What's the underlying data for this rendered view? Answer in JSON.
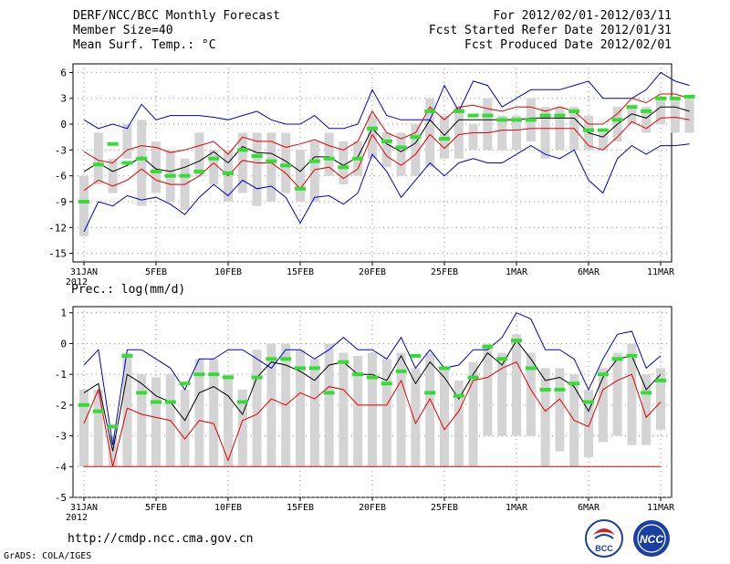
{
  "header": {
    "title": "DERF/NCC/BCC Monthly Forecast",
    "member_size": "Member Size=40",
    "variable": "Mean Surf. Temp.: °C",
    "period": "For 2012/02/01-2012/03/11",
    "refer_date": "Fcst Started Refer Date 2012/01/31",
    "produced_date": "Fcst Produced Date 2012/02/01"
  },
  "footer": {
    "url": "http://cmdp.ncc.cma.gov.cn",
    "grads": "GrADS: COLA/IGES",
    "logo_bcc": "BCC",
    "logo_ncc": "NCC"
  },
  "colors": {
    "box": "#d4d4d4",
    "mean": "#000000",
    "inner": "#e00000",
    "outer": "#0000cc",
    "obs": "#33dd33"
  },
  "chart_data": [
    {
      "type": "line",
      "title": "Mean Surf. Temp.: °C",
      "x_tick_labels": [
        "31JAN\n2012",
        "5FEB",
        "10FEB",
        "15FEB",
        "20FEB",
        "25FEB",
        "1MAR",
        "6MAR",
        "11MAR"
      ],
      "x_tick_index": [
        0,
        5,
        10,
        15,
        20,
        25,
        30,
        35,
        40
      ],
      "ylim": [
        -16,
        7
      ],
      "yticks": [
        6,
        3,
        0,
        -3,
        -6,
        -9,
        -12,
        -15
      ],
      "series": [
        {
          "name": "max",
          "values": [
            0.5,
            -0.5,
            0,
            -0.5,
            2.3,
            0.5,
            1,
            1,
            1,
            0.8,
            0.5,
            1,
            1.5,
            0.5,
            0,
            0,
            1,
            -0.5,
            -0.5,
            0,
            4,
            1,
            0.5,
            0.5,
            0.5,
            4.5,
            1.5,
            5,
            4.5,
            2,
            3,
            4,
            4,
            4,
            4.5,
            5,
            3,
            3,
            3,
            4,
            6,
            5,
            4.5
          ]
        },
        {
          "name": "upper",
          "values": [
            -3.2,
            -4.2,
            -4.5,
            -3,
            -2.5,
            -2.7,
            -3.3,
            -3,
            -2.5,
            -2,
            -3.5,
            -1.5,
            -2,
            -2,
            -2.7,
            -2.3,
            -1.8,
            -2.5,
            -3,
            -2,
            1.5,
            -1,
            -1.7,
            -1,
            2,
            0.5,
            2,
            2.2,
            1.8,
            1.5,
            2,
            2,
            1.5,
            2,
            1.5,
            0,
            0,
            1.2,
            3,
            2.5,
            3.5,
            3.5,
            3
          ]
        },
        {
          "name": "mean",
          "values": [
            -5.5,
            -4.5,
            -5.5,
            -4.8,
            -3.8,
            -5.2,
            -5.5,
            -5,
            -4.3,
            -3.2,
            -4.5,
            -2.6,
            -3.3,
            -3.4,
            -4.3,
            -5.5,
            -3.8,
            -3.8,
            -4.8,
            -3.8,
            -0.5,
            -2.3,
            -3.2,
            -2.2,
            0.5,
            -1.3,
            0.5,
            0.5,
            0.5,
            0.5,
            0.5,
            0.7,
            0.7,
            0.7,
            0.7,
            -1,
            -1.5,
            0,
            1.2,
            0.7,
            2,
            2,
            1.5
          ]
        },
        {
          "name": "lower",
          "values": [
            -7.7,
            -6.5,
            -7.2,
            -6.5,
            -5.2,
            -6.5,
            -7,
            -7,
            -6,
            -4.5,
            -6,
            -4.2,
            -4.5,
            -4.5,
            -5.7,
            -7.5,
            -5.3,
            -5,
            -6.3,
            -5.2,
            -1.2,
            -3.7,
            -4.8,
            -3.5,
            -1.2,
            -2.8,
            -1.2,
            -1,
            -1,
            -0.7,
            -0.7,
            -0.5,
            -0.5,
            -0.5,
            -0.5,
            -2.5,
            -3,
            -1.5,
            0.3,
            -0.5,
            0.7,
            0.8,
            0.5
          ]
        },
        {
          "name": "min",
          "values": [
            -12.5,
            -9,
            -9.5,
            -8.3,
            -8.8,
            -8.5,
            -9.3,
            -10.5,
            -8.5,
            -7,
            -8.3,
            -6.5,
            -7.5,
            -7.2,
            -8.5,
            -11.5,
            -8.5,
            -8.3,
            -9.3,
            -8,
            -3.5,
            -5.5,
            -8.5,
            -6.5,
            -4.5,
            -6,
            -4.5,
            -4,
            -4.5,
            -4.5,
            -3.5,
            -2.5,
            -3.5,
            -4,
            -3,
            -6.5,
            -8,
            -4,
            -2.5,
            -3.5,
            -2.5,
            -2.5,
            -2.3
          ]
        },
        {
          "name": "box_top",
          "values": [
            -6,
            -1,
            -4,
            0,
            0.5,
            -2,
            -3,
            -4,
            -1,
            -3,
            -3,
            -1,
            -1,
            -1,
            -1,
            -3,
            -2,
            -1,
            -2,
            -2,
            1,
            -1,
            -1,
            0,
            3,
            1,
            2,
            0,
            3,
            1,
            1,
            3,
            2,
            2,
            2,
            1,
            -1,
            2,
            2,
            2,
            3,
            3,
            3
          ]
        },
        {
          "name": "box_bottom",
          "values": [
            -13,
            -7,
            -8,
            -4,
            -9.5,
            -8,
            -9,
            -10,
            -6,
            -7,
            -9,
            -8,
            -9.5,
            -9,
            -8,
            -9,
            -9,
            -6,
            -7,
            -6,
            -4,
            -5,
            -6,
            -6,
            -5,
            -4,
            -4,
            -3,
            -3,
            -3,
            -3,
            -2,
            -4,
            -3,
            -3,
            -3,
            -3,
            -2,
            0,
            -1,
            0,
            -1,
            -1
          ]
        },
        {
          "name": "observed",
          "values": [
            -9,
            -4.7,
            -2.3,
            -4.5,
            -4,
            -5.5,
            -6,
            -6,
            -5.5,
            -4,
            -5.7,
            -3,
            -3.7,
            -4.3,
            -4.8,
            -7.5,
            -4.3,
            -4,
            -5,
            -4,
            -0.5,
            -2,
            -2.7,
            -1.5,
            1.5,
            -1.7,
            1.5,
            1,
            1,
            0.5,
            0.5,
            0.5,
            1,
            1,
            1.5,
            -0.7,
            -0.7,
            0.5,
            2,
            1.5,
            3,
            3,
            3.2
          ]
        }
      ]
    },
    {
      "type": "line",
      "title": "Prec.: log(mm/d)",
      "x_tick_labels": [
        "31JAN\n2012",
        "5FEB",
        "10FEB",
        "15FEB",
        "20FEB",
        "25FEB",
        "1MAR",
        "6MAR",
        "11MAR"
      ],
      "x_tick_index": [
        0,
        5,
        10,
        15,
        20,
        25,
        30,
        35,
        40
      ],
      "ylim": [
        -5,
        1.2
      ],
      "yticks": [
        1,
        0,
        -1,
        -2,
        -3,
        -4,
        -5
      ],
      "series": [
        {
          "name": "max",
          "values": [
            -0.7,
            -0.2,
            -3.3,
            -0.2,
            -0.2,
            -0.5,
            -0.8,
            -1.5,
            -0.5,
            -0.5,
            -0.2,
            -0.2,
            -0.5,
            -0.8,
            -0.2,
            -0.2,
            -0.5,
            -0.2,
            0.2,
            -0.2,
            -0.2,
            -0.5,
            0.2,
            -0.8,
            -0.2,
            -0.8,
            -0.7,
            -0.2,
            -0.2,
            0.2,
            1,
            0.8,
            -0.2,
            -0.2,
            -0.5,
            -1.5,
            -0.5,
            0.3,
            0.4,
            -0.8,
            -0.4
          ]
        },
        {
          "name": "mean",
          "values": [
            -1.6,
            -1.3,
            -3.5,
            -1,
            -1.3,
            -1.7,
            -1.9,
            -2.5,
            -1.6,
            -1.4,
            -1.7,
            -2.3,
            -1.1,
            -0.6,
            -0.7,
            -0.9,
            -1.2,
            -0.7,
            -0.6,
            -1,
            -1,
            -1.2,
            -0.4,
            -1.3,
            -0.6,
            -1.1,
            -1.8,
            -1,
            -0.3,
            -0.7,
            0.1,
            -0.5,
            -1.2,
            -1.1,
            -1.4,
            -2.2,
            -1.1,
            -0.5,
            -0.4,
            -1.5,
            -1
          ]
        },
        {
          "name": "min",
          "values": [
            -2.6,
            -1.5,
            -4,
            -2.1,
            -2.3,
            -2.4,
            -2.5,
            -3.1,
            -2.5,
            -2.6,
            -3.8,
            -2.5,
            -2.3,
            -1.8,
            -2,
            -1.6,
            -1.8,
            -1.4,
            -1.5,
            -2,
            -2,
            -2,
            -1.2,
            -2.6,
            -1.8,
            -2.8,
            -2.2,
            -1.2,
            -1.1,
            -0.8,
            -0.6,
            -1.5,
            -2.2,
            -1.8,
            -2.5,
            -2.7,
            -1.5,
            -1.2,
            -1,
            -2.4,
            -1.9
          ]
        },
        {
          "name": "floor",
          "values": [
            -4,
            -4,
            -4,
            -4,
            -4,
            -4,
            -4,
            -4,
            -4,
            -4,
            -4,
            -4,
            -4,
            -4,
            -4,
            -4,
            -4,
            -4,
            -4,
            -4,
            -4,
            -4,
            -4,
            -4,
            -4,
            -4,
            -4,
            -4,
            -4,
            -4,
            -4,
            -4,
            -4,
            -4,
            -4,
            -4,
            -4,
            -4,
            -4,
            -4,
            -4
          ]
        },
        {
          "name": "box_top",
          "values": [
            -1.5,
            -1.5,
            -3,
            -0.3,
            -1,
            -1.1,
            -1,
            -1.5,
            -0.5,
            -0.5,
            -1,
            -1.5,
            -0.2,
            0,
            0,
            -0.2,
            -0.5,
            0,
            -0.3,
            -0.4,
            -0.3,
            -0.5,
            -0.3,
            -0.8,
            -0.3,
            -0.8,
            -1.2,
            -0.6,
            0,
            -0.3,
            0.3,
            -0.3,
            -0.8,
            -0.8,
            -1,
            -1.5,
            -0.8,
            -0.3,
            0,
            -1,
            -0.8
          ]
        },
        {
          "name": "box_bottom",
          "values": [
            -4,
            -4,
            -4,
            -4,
            -4,
            -4,
            -4,
            -4,
            -4,
            -4,
            -4,
            -4,
            -4,
            -4,
            -4,
            -4,
            -4,
            -4,
            -4,
            -4,
            -4,
            -4,
            -4,
            -4,
            -4,
            -4,
            -4,
            -4,
            -3,
            -3,
            -3,
            -3,
            -4,
            -3.5,
            -4,
            -3.7,
            -3.2,
            -3,
            -3.3,
            -3.3,
            -2.8
          ]
        },
        {
          "name": "observed",
          "values": [
            -2,
            -2.2,
            -2.7,
            -0.4,
            -1.6,
            -1.9,
            -1.9,
            -1.3,
            -1,
            -1,
            -1.1,
            -1.9,
            -1.1,
            -0.5,
            -0.5,
            -0.8,
            -0.8,
            -1.6,
            -0.6,
            -1,
            -1.1,
            -1.3,
            -0.9,
            -0.4,
            -1.6,
            -0.8,
            -1.7,
            -1.1,
            -0.1,
            -0.5,
            0.1,
            -0.8,
            -1.5,
            -1.5,
            -1.3,
            -1.9,
            -1,
            -0.5,
            -0.4,
            -1.6,
            -1.2
          ]
        }
      ]
    }
  ]
}
